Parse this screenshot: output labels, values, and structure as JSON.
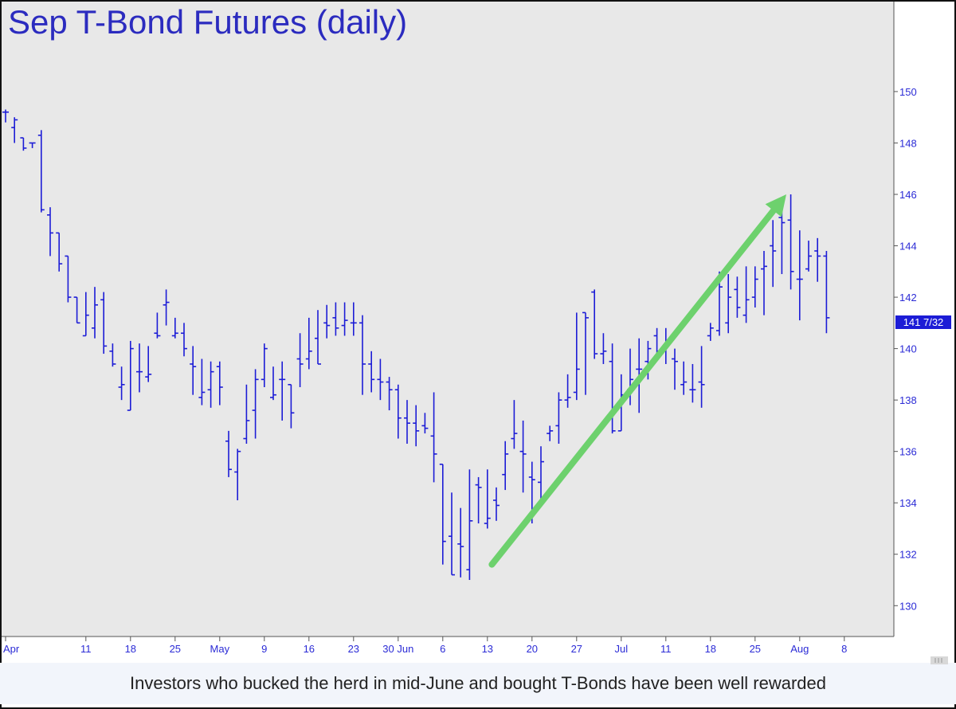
{
  "chart_data": {
    "type": "ohlc",
    "title": "Sep T-Bond Futures (daily)",
    "caption": "Investors who bucked the herd in mid-June and bought T-Bonds have been well rewarded",
    "last_price_label": "141 7/32",
    "ylim": [
      128.8,
      153.5
    ],
    "y_ticks": [
      130,
      132,
      134,
      136,
      138,
      140,
      142,
      144,
      146,
      148,
      150
    ],
    "x_ticks": [
      "Apr",
      "11",
      "18",
      "25",
      "May",
      "9",
      "16",
      "23",
      "30 Jun",
      "6",
      "13",
      "20",
      "27",
      "Jul",
      "11",
      "18",
      "25",
      "Aug",
      "8"
    ],
    "x_tick_index": [
      0,
      9,
      14,
      19,
      24,
      29,
      34,
      39,
      44,
      49,
      54,
      59,
      64,
      69,
      74,
      79,
      84,
      89,
      94
    ],
    "background_color": "#e8e8e8",
    "bar_color": "#1c1cd6",
    "arrow_color": "#6dd16d",
    "grid": false,
    "bars": [
      [
        149.2,
        149.3,
        148.8,
        149.2
      ],
      [
        148.6,
        149.0,
        148.0,
        148.9
      ],
      [
        148.2,
        148.2,
        147.7,
        147.8
      ],
      [
        148.0,
        148.0,
        147.8,
        148.0
      ],
      [
        148.3,
        148.5,
        145.3,
        145.4
      ],
      [
        145.2,
        145.5,
        143.6,
        144.5
      ],
      [
        144.5,
        144.5,
        143.0,
        143.3
      ],
      [
        143.6,
        143.6,
        141.8,
        142.0
      ],
      [
        142.0,
        142.0,
        141.0,
        141.0
      ],
      [
        140.5,
        142.2,
        140.5,
        141.3
      ],
      [
        140.8,
        142.4,
        140.4,
        141.7
      ],
      [
        141.9,
        142.2,
        139.8,
        140.1
      ],
      [
        139.9,
        140.2,
        139.3,
        139.4
      ],
      [
        138.5,
        139.3,
        138.0,
        138.6
      ],
      [
        137.6,
        140.3,
        137.6,
        140.0
      ],
      [
        139.1,
        140.2,
        138.3,
        139.1
      ],
      [
        138.9,
        140.1,
        138.7,
        139.0
      ],
      [
        140.6,
        141.4,
        140.4,
        140.5
      ],
      [
        141.7,
        142.3,
        140.9,
        141.8
      ],
      [
        140.5,
        141.2,
        140.4,
        140.6
      ],
      [
        140.6,
        141.0,
        139.7,
        140.0
      ],
      [
        139.4,
        140.1,
        138.2,
        139.3
      ],
      [
        138.1,
        139.6,
        137.8,
        138.3
      ],
      [
        138.4,
        139.5,
        137.7,
        139.1
      ],
      [
        139.3,
        139.5,
        137.8,
        138.5
      ],
      [
        136.4,
        136.8,
        135.0,
        135.3
      ],
      [
        135.2,
        136.1,
        134.1,
        136.0
      ],
      [
        136.5,
        138.6,
        136.3,
        137.2
      ],
      [
        137.6,
        139.2,
        136.5,
        138.8
      ],
      [
        138.8,
        140.2,
        138.5,
        140.0
      ],
      [
        138.1,
        139.3,
        138.0,
        138.2
      ],
      [
        138.8,
        139.5,
        137.2,
        138.8
      ],
      [
        138.6,
        138.6,
        136.9,
        137.5
      ],
      [
        139.6,
        140.6,
        138.5,
        139.4
      ],
      [
        139.6,
        141.2,
        139.2,
        139.9
      ],
      [
        140.4,
        141.5,
        139.4,
        139.4
      ],
      [
        141.0,
        141.7,
        140.4,
        140.9
      ],
      [
        141.2,
        141.8,
        140.5,
        140.8
      ],
      [
        140.9,
        141.8,
        140.5,
        141.1
      ],
      [
        141.0,
        141.8,
        140.5,
        141.0
      ],
      [
        141.0,
        141.3,
        138.2,
        139.4
      ],
      [
        139.4,
        139.9,
        138.3,
        138.8
      ],
      [
        138.8,
        139.6,
        138.0,
        138.7
      ],
      [
        138.7,
        138.9,
        137.6,
        138.4
      ],
      [
        138.4,
        138.6,
        136.5,
        137.3
      ],
      [
        137.3,
        138.0,
        136.3,
        137.1
      ],
      [
        137.1,
        137.8,
        136.2,
        136.8
      ],
      [
        137.0,
        137.5,
        136.7,
        136.9
      ],
      [
        136.6,
        138.3,
        134.8,
        135.9
      ],
      [
        135.5,
        135.5,
        131.6,
        132.5
      ],
      [
        132.7,
        134.4,
        131.2,
        131.2
      ],
      [
        132.4,
        133.8,
        131.1,
        132.3
      ],
      [
        131.4,
        135.3,
        131.0,
        133.3
      ],
      [
        134.7,
        135.0,
        133.2,
        134.6
      ],
      [
        133.2,
        135.3,
        133.0,
        133.4
      ],
      [
        134.1,
        134.6,
        133.3,
        133.9
      ],
      [
        135.1,
        136.4,
        134.5,
        135.9
      ],
      [
        136.5,
        138.0,
        136.1,
        136.7
      ],
      [
        136.0,
        137.2,
        134.4,
        135.9
      ],
      [
        135.0,
        135.6,
        133.2,
        134.9
      ],
      [
        134.8,
        136.2,
        134.1,
        135.6
      ],
      [
        136.7,
        137.0,
        136.4,
        136.8
      ],
      [
        137.0,
        138.3,
        136.3,
        138.0
      ],
      [
        138.0,
        139.0,
        137.7,
        138.1
      ],
      [
        138.3,
        141.4,
        138.0,
        139.2
      ],
      [
        141.4,
        141.4,
        138.2,
        141.2
      ],
      [
        142.2,
        142.3,
        139.6,
        139.8
      ],
      [
        139.8,
        140.6,
        139.4,
        139.9
      ],
      [
        139.5,
        140.2,
        136.7,
        136.8
      ],
      [
        136.8,
        139.0,
        136.8,
        138.2
      ],
      [
        138.4,
        140.0,
        137.8,
        138.8
      ],
      [
        139.2,
        140.4,
        137.5,
        139.2
      ],
      [
        139.5,
        140.3,
        138.8,
        140.0
      ],
      [
        140.5,
        140.8,
        139.6,
        139.9
      ],
      [
        140.1,
        140.8,
        139.4,
        140.1
      ],
      [
        139.6,
        140.0,
        138.4,
        139.5
      ],
      [
        138.6,
        139.5,
        138.2,
        138.7
      ],
      [
        138.4,
        139.4,
        137.9,
        138.4
      ],
      [
        138.7,
        140.1,
        137.7,
        138.6
      ],
      [
        140.5,
        141.0,
        140.3,
        140.8
      ],
      [
        140.7,
        143.0,
        140.5,
        142.4
      ],
      [
        141.0,
        142.9,
        140.6,
        142.0
      ],
      [
        142.3,
        142.8,
        141.2,
        141.6
      ],
      [
        141.3,
        143.2,
        141.0,
        141.9
      ],
      [
        142.0,
        143.2,
        141.6,
        142.7
      ],
      [
        143.1,
        143.8,
        141.3,
        143.2
      ],
      [
        144.0,
        145.0,
        142.4,
        143.8
      ],
      [
        145.1,
        145.8,
        142.9,
        144.9
      ],
      [
        145.0,
        146.0,
        142.3,
        143.0
      ],
      [
        142.7,
        144.6,
        141.1,
        142.7
      ],
      [
        143.1,
        144.2,
        143.0,
        143.6
      ],
      [
        143.8,
        144.3,
        142.6,
        143.6
      ],
      [
        143.6,
        143.8,
        140.6,
        141.2
      ]
    ],
    "annotation": {
      "type": "arrow",
      "from": [
        54.5,
        131.6
      ],
      "to": [
        87.5,
        146.0
      ]
    }
  }
}
